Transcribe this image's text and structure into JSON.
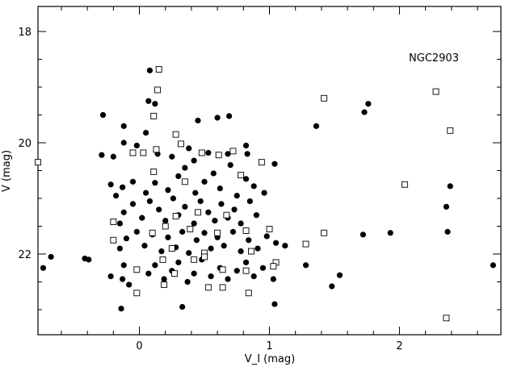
{
  "chart_data": {
    "type": "scatter",
    "xlabel": "V_I (mag)",
    "ylabel": "V (mag)",
    "xlim": [
      -0.78,
      2.78
    ],
    "ylim": [
      23.45,
      17.55
    ],
    "y_inverted": true,
    "x_ticks": [
      0,
      1,
      2
    ],
    "y_ticks": [
      18,
      20,
      22
    ],
    "annotation": "NGC2903",
    "grid": false,
    "series": [
      {
        "marker": "filled-circle",
        "points": [
          [
            0.08,
            18.7
          ],
          [
            0.07,
            19.25
          ],
          [
            0.12,
            19.3
          ],
          [
            -0.28,
            19.5
          ],
          [
            -0.12,
            19.7
          ],
          [
            0.05,
            19.82
          ],
          [
            0.45,
            19.6
          ],
          [
            0.6,
            19.55
          ],
          [
            0.69,
            19.52
          ],
          [
            1.36,
            19.7
          ],
          [
            1.73,
            19.45
          ],
          [
            1.76,
            19.3
          ],
          [
            -0.29,
            20.22
          ],
          [
            -0.2,
            20.25
          ],
          [
            -0.12,
            20.0
          ],
          [
            -0.02,
            20.05
          ],
          [
            0.14,
            20.2
          ],
          [
            0.25,
            20.25
          ],
          [
            0.38,
            20.1
          ],
          [
            0.42,
            20.32
          ],
          [
            0.53,
            20.18
          ],
          [
            0.68,
            20.2
          ],
          [
            0.82,
            20.05
          ],
          [
            0.83,
            20.2
          ],
          [
            1.04,
            20.38
          ],
          [
            -0.22,
            20.75
          ],
          [
            -0.18,
            20.95
          ],
          [
            -0.13,
            20.8
          ],
          [
            -0.05,
            20.7
          ],
          [
            0.05,
            20.9
          ],
          [
            0.12,
            20.72
          ],
          [
            0.22,
            20.85
          ],
          [
            0.3,
            20.6
          ],
          [
            0.35,
            20.45
          ],
          [
            0.43,
            20.9
          ],
          [
            0.5,
            20.7
          ],
          [
            0.57,
            20.55
          ],
          [
            0.62,
            20.82
          ],
          [
            0.7,
            20.4
          ],
          [
            0.75,
            20.95
          ],
          [
            0.82,
            20.65
          ],
          [
            0.88,
            20.78
          ],
          [
            0.96,
            20.9
          ],
          [
            2.39,
            20.78
          ],
          [
            -0.15,
            21.45
          ],
          [
            -0.12,
            21.25
          ],
          [
            -0.05,
            21.1
          ],
          [
            0.02,
            21.35
          ],
          [
            0.08,
            21.05
          ],
          [
            0.15,
            21.2
          ],
          [
            0.2,
            21.4
          ],
          [
            0.26,
            21.0
          ],
          [
            0.3,
            21.3
          ],
          [
            0.35,
            21.15
          ],
          [
            0.42,
            21.45
          ],
          [
            0.47,
            21.05
          ],
          [
            0.53,
            21.25
          ],
          [
            0.58,
            21.4
          ],
          [
            0.63,
            21.1
          ],
          [
            0.68,
            21.35
          ],
          [
            0.73,
            21.2
          ],
          [
            0.78,
            21.45
          ],
          [
            0.85,
            21.05
          ],
          [
            0.9,
            21.3
          ],
          [
            2.36,
            21.15
          ],
          [
            -0.15,
            21.9
          ],
          [
            -0.1,
            21.72
          ],
          [
            -0.02,
            21.6
          ],
          [
            0.04,
            21.85
          ],
          [
            0.1,
            21.65
          ],
          [
            0.17,
            21.95
          ],
          [
            0.22,
            21.7
          ],
          [
            0.28,
            21.88
          ],
          [
            0.33,
            21.6
          ],
          [
            0.38,
            21.98
          ],
          [
            0.44,
            21.75
          ],
          [
            0.5,
            21.62
          ],
          [
            0.55,
            21.9
          ],
          [
            0.6,
            21.7
          ],
          [
            0.65,
            21.85
          ],
          [
            0.72,
            21.6
          ],
          [
            0.78,
            21.95
          ],
          [
            0.84,
            21.75
          ],
          [
            0.91,
            21.9
          ],
          [
            0.98,
            21.68
          ],
          [
            1.05,
            21.8
          ],
          [
            1.12,
            21.85
          ],
          [
            1.72,
            21.65
          ],
          [
            1.93,
            21.62
          ],
          [
            2.37,
            21.6
          ],
          [
            -0.74,
            22.25
          ],
          [
            -0.68,
            22.05
          ],
          [
            -0.42,
            22.08
          ],
          [
            -0.39,
            22.1
          ],
          [
            -0.22,
            22.4
          ],
          [
            -0.12,
            22.2
          ],
          [
            -0.13,
            22.45
          ],
          [
            -0.08,
            22.55
          ],
          [
            0.07,
            22.35
          ],
          [
            0.12,
            22.2
          ],
          [
            0.19,
            22.45
          ],
          [
            0.25,
            22.3
          ],
          [
            0.3,
            22.15
          ],
          [
            0.37,
            22.5
          ],
          [
            0.42,
            22.35
          ],
          [
            0.48,
            22.1
          ],
          [
            0.55,
            22.4
          ],
          [
            0.62,
            22.25
          ],
          [
            0.68,
            22.45
          ],
          [
            0.75,
            22.3
          ],
          [
            0.82,
            22.15
          ],
          [
            0.88,
            22.4
          ],
          [
            0.95,
            22.25
          ],
          [
            1.03,
            22.45
          ],
          [
            1.28,
            22.2
          ],
          [
            1.48,
            22.58
          ],
          [
            1.54,
            22.38
          ],
          [
            2.72,
            22.2
          ],
          [
            -0.14,
            22.98
          ],
          [
            0.33,
            22.95
          ],
          [
            1.04,
            22.9
          ]
        ]
      },
      {
        "marker": "open-square",
        "points": [
          [
            0.15,
            18.68
          ],
          [
            0.14,
            19.05
          ],
          [
            0.11,
            19.52
          ],
          [
            1.42,
            19.2
          ],
          [
            2.28,
            19.08
          ],
          [
            2.39,
            19.78
          ],
          [
            -0.78,
            20.35
          ],
          [
            -0.05,
            20.18
          ],
          [
            0.03,
            20.18
          ],
          [
            0.13,
            20.12
          ],
          [
            0.28,
            19.85
          ],
          [
            0.32,
            20.02
          ],
          [
            0.48,
            20.18
          ],
          [
            0.61,
            20.22
          ],
          [
            0.72,
            20.15
          ],
          [
            0.94,
            20.35
          ],
          [
            0.11,
            20.52
          ],
          [
            0.35,
            20.7
          ],
          [
            0.78,
            20.58
          ],
          [
            0.28,
            21.32
          ],
          [
            0.45,
            21.25
          ],
          [
            0.67,
            21.3
          ],
          [
            -0.2,
            21.42
          ],
          [
            0.2,
            21.5
          ],
          [
            -0.2,
            21.75
          ],
          [
            0.1,
            21.62
          ],
          [
            0.39,
            21.55
          ],
          [
            0.6,
            21.62
          ],
          [
            0.82,
            21.58
          ],
          [
            1.0,
            21.55
          ],
          [
            1.42,
            21.62
          ],
          [
            2.04,
            20.75
          ],
          [
            0.25,
            21.9
          ],
          [
            0.5,
            21.98
          ],
          [
            0.86,
            21.95
          ],
          [
            1.28,
            21.82
          ],
          [
            -0.02,
            22.28
          ],
          [
            0.18,
            22.1
          ],
          [
            0.27,
            22.35
          ],
          [
            0.42,
            22.1
          ],
          [
            0.5,
            22.05
          ],
          [
            0.64,
            22.28
          ],
          [
            0.82,
            22.3
          ],
          [
            1.05,
            22.15
          ],
          [
            1.03,
            22.22
          ],
          [
            -0.02,
            22.7
          ],
          [
            0.19,
            22.55
          ],
          [
            0.53,
            22.6
          ],
          [
            0.64,
            22.6
          ],
          [
            0.84,
            22.7
          ],
          [
            2.36,
            23.15
          ]
        ]
      }
    ]
  }
}
